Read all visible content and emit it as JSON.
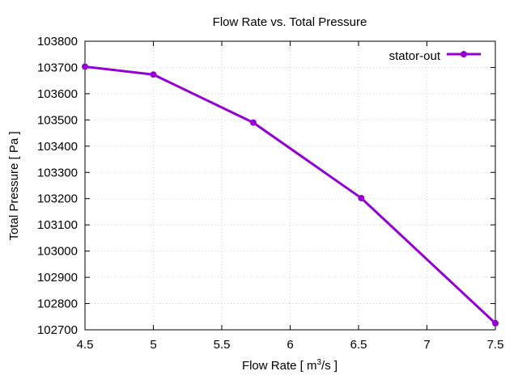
{
  "chart_data": {
    "type": "line",
    "title": "Flow Rate vs. Total Pressure",
    "xlabel": {
      "prefix": "Flow Rate [ m",
      "superscript": "3",
      "suffix": "/s ]"
    },
    "ylabel": "Total Pressure [ Pa ]",
    "xlim": [
      4.5,
      7.5
    ],
    "ylim": [
      102700,
      103800
    ],
    "x_ticks": [
      "4.5",
      "5",
      "5.5",
      "6",
      "6.5",
      "7",
      "7.5"
    ],
    "y_ticks": [
      "102700",
      "102800",
      "102900",
      "103000",
      "103100",
      "103200",
      "103300",
      "103400",
      "103500",
      "103600",
      "103700",
      "103800"
    ],
    "grid": true,
    "legend_position": "top-right",
    "series": [
      {
        "name": "stator-out",
        "color": "#9400d3",
        "x": [
          4.5,
          5.0,
          5.73,
          6.52,
          7.5
        ],
        "y": [
          103703,
          103673,
          103490,
          103202,
          102725
        ]
      }
    ]
  }
}
